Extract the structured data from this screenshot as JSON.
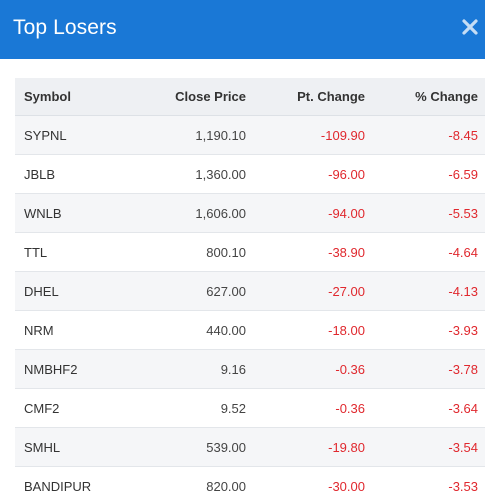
{
  "modal": {
    "title": "Top Losers",
    "close_glyph": "close-icon"
  },
  "table": {
    "headers": {
      "symbol": "Symbol",
      "close": "Close Price",
      "pt": "Pt. Change",
      "pct": "% Change"
    },
    "rows": [
      {
        "symbol": "SYPNL",
        "close": "1,190.10",
        "pt": "-109.90",
        "pct": "-8.45"
      },
      {
        "symbol": "JBLB",
        "close": "1,360.00",
        "pt": "-96.00",
        "pct": "-6.59"
      },
      {
        "symbol": "WNLB",
        "close": "1,606.00",
        "pt": "-94.00",
        "pct": "-5.53"
      },
      {
        "symbol": "TTL",
        "close": "800.10",
        "pt": "-38.90",
        "pct": "-4.64"
      },
      {
        "symbol": "DHEL",
        "close": "627.00",
        "pt": "-27.00",
        "pct": "-4.13"
      },
      {
        "symbol": "NRM",
        "close": "440.00",
        "pt": "-18.00",
        "pct": "-3.93"
      },
      {
        "symbol": "NMBHF2",
        "close": "9.16",
        "pt": "-0.36",
        "pct": "-3.78"
      },
      {
        "symbol": "CMF2",
        "close": "9.52",
        "pt": "-0.36",
        "pct": "-3.64"
      },
      {
        "symbol": "SMHL",
        "close": "539.00",
        "pt": "-19.80",
        "pct": "-3.54"
      },
      {
        "symbol": "BANDIPUR",
        "close": "820.00",
        "pt": "-30.00",
        "pct": "-3.53"
      }
    ]
  },
  "colors": {
    "header_bg": "#1a78d6",
    "negative": "#e0282e",
    "row_alt": "#f5f6f8",
    "thead_bg": "#eef0f3"
  }
}
